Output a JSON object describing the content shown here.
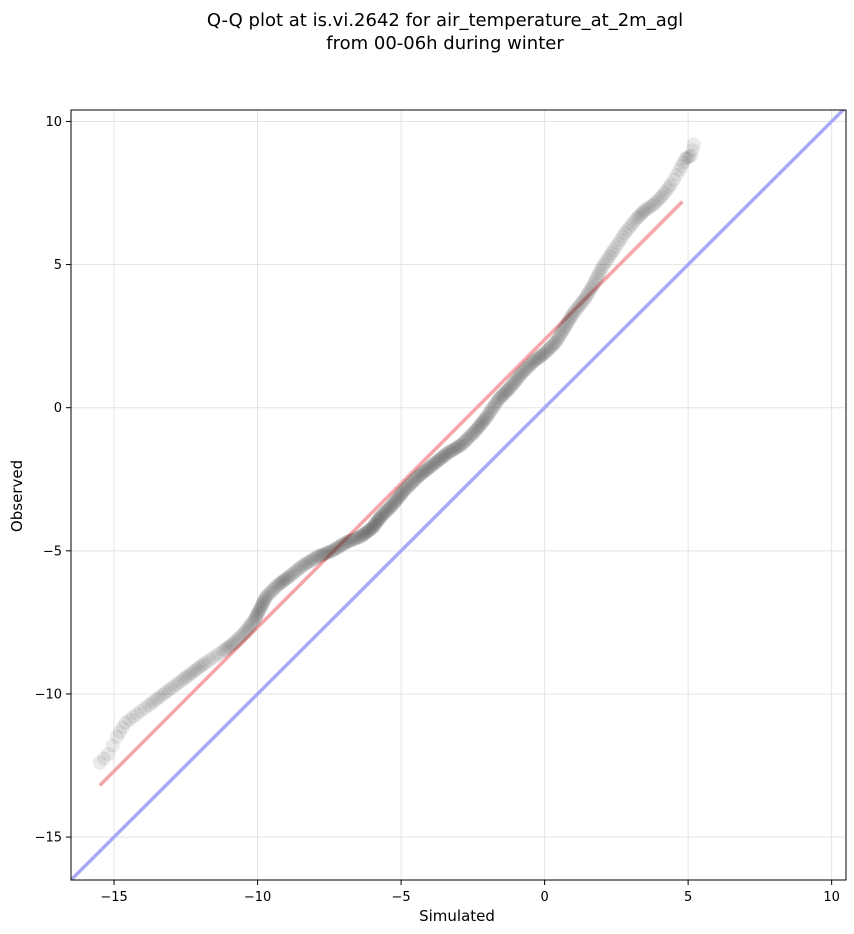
{
  "chart_data": {
    "type": "scatter",
    "title_line1": "Q-Q plot at is.vi.2642 for air_temperature_at_2m_agl",
    "title_line2": "from 00-06h during winter",
    "xlabel": "Simulated",
    "ylabel": "Observed",
    "xlim": [
      -16.5,
      10.5
    ],
    "ylim": [
      -16.5,
      10.4
    ],
    "xticks": [
      -15,
      -10,
      -5,
      0,
      5,
      10
    ],
    "yticks": [
      -15,
      -10,
      -5,
      0,
      5,
      10
    ],
    "xtick_labels": [
      "−15",
      "−10",
      "−5",
      "0",
      "5",
      "10"
    ],
    "ytick_labels": [
      "−15",
      "−10",
      "−5",
      "0",
      "5",
      "10"
    ],
    "grid": true,
    "quantile_curve": [
      [
        -15.5,
        -12.4
      ],
      [
        -15.2,
        -12.1
      ],
      [
        -14.9,
        -11.5
      ],
      [
        -14.6,
        -11.0
      ],
      [
        -14.2,
        -10.7
      ],
      [
        -13.8,
        -10.4
      ],
      [
        -13.4,
        -10.1
      ],
      [
        -13.0,
        -9.8
      ],
      [
        -12.6,
        -9.5
      ],
      [
        -12.2,
        -9.2
      ],
      [
        -11.8,
        -8.9
      ],
      [
        -11.2,
        -8.5
      ],
      [
        -10.8,
        -8.2
      ],
      [
        -10.4,
        -7.8
      ],
      [
        -10.1,
        -7.4
      ],
      [
        -9.9,
        -7.0
      ],
      [
        -9.7,
        -6.6
      ],
      [
        -9.3,
        -6.2
      ],
      [
        -8.9,
        -5.9
      ],
      [
        -8.4,
        -5.5
      ],
      [
        -7.9,
        -5.2
      ],
      [
        -7.4,
        -5.0
      ],
      [
        -6.9,
        -4.7
      ],
      [
        -6.4,
        -4.5
      ],
      [
        -6.0,
        -4.2
      ],
      [
        -5.7,
        -3.8
      ],
      [
        -5.3,
        -3.4
      ],
      [
        -4.9,
        -2.9
      ],
      [
        -4.4,
        -2.4
      ],
      [
        -3.9,
        -2.0
      ],
      [
        -3.4,
        -1.6
      ],
      [
        -2.9,
        -1.3
      ],
      [
        -2.4,
        -0.8
      ],
      [
        -2.0,
        -0.3
      ],
      [
        -1.6,
        0.3
      ],
      [
        -1.2,
        0.7
      ],
      [
        -0.8,
        1.2
      ],
      [
        -0.4,
        1.6
      ],
      [
        0.0,
        1.9
      ],
      [
        0.4,
        2.3
      ],
      [
        0.7,
        2.8
      ],
      [
        1.0,
        3.3
      ],
      [
        1.4,
        3.8
      ],
      [
        1.7,
        4.3
      ],
      [
        2.0,
        4.9
      ],
      [
        2.4,
        5.5
      ],
      [
        2.8,
        6.1
      ],
      [
        3.2,
        6.6
      ],
      [
        3.5,
        6.9
      ],
      [
        3.8,
        7.1
      ],
      [
        4.1,
        7.4
      ],
      [
        4.4,
        7.8
      ],
      [
        4.7,
        8.3
      ],
      [
        4.9,
        8.7
      ],
      [
        5.1,
        8.8
      ],
      [
        5.2,
        9.2
      ]
    ],
    "fit_line": {
      "from": [
        -15.5,
        -13.2
      ],
      "to": [
        4.8,
        7.2
      ],
      "color": "#f4a6a8"
    },
    "identity_line": {
      "from": [
        -16.5,
        -16.5
      ],
      "to": [
        10.5,
        10.5
      ],
      "color": "#a9aaf5"
    },
    "marker_color": "#222222"
  }
}
